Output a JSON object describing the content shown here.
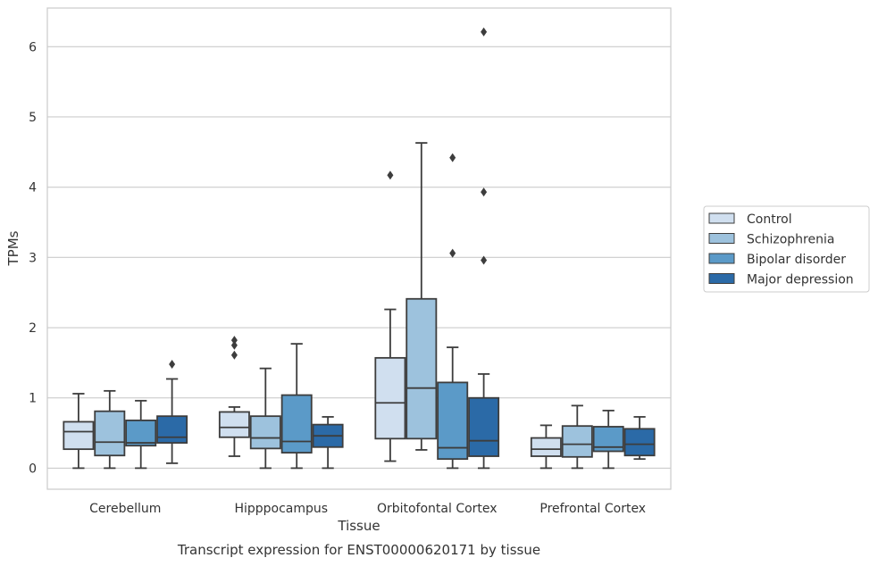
{
  "chart_data": {
    "type": "box",
    "title": "",
    "caption": "Transcript expression for ENST00000620171 by tissue",
    "xlabel": "Tissue",
    "ylabel": "TPMs",
    "ylim": [
      -0.3,
      6.55
    ],
    "yticks": [
      0,
      1,
      2,
      3,
      4,
      5,
      6
    ],
    "ytick_labels": [
      "0",
      "1",
      "2",
      "3",
      "4",
      "5",
      "6"
    ],
    "grid": "horizontal",
    "legend_position": "right",
    "categories": [
      "Cerebellum",
      "Hipppocampus",
      "Orbitofontal Cortex",
      "Prefrontal Cortex"
    ],
    "series": [
      {
        "name": "Control",
        "color": "#d0dfef",
        "boxes": [
          {
            "min": 0.0,
            "q1": 0.27,
            "median": 0.52,
            "q3": 0.66,
            "max": 1.06,
            "outliers": []
          },
          {
            "min": 0.17,
            "q1": 0.44,
            "median": 0.58,
            "q3": 0.8,
            "max": 0.87,
            "outliers": [
              1.61,
              1.75,
              1.82
            ]
          },
          {
            "min": 0.1,
            "q1": 0.42,
            "median": 0.93,
            "q3": 1.57,
            "max": 2.26,
            "outliers": [
              4.17
            ]
          },
          {
            "min": 0.0,
            "q1": 0.17,
            "median": 0.27,
            "q3": 0.43,
            "max": 0.61,
            "outliers": []
          }
        ]
      },
      {
        "name": "Schizophrenia",
        "color": "#9dc2dd",
        "boxes": [
          {
            "min": 0.0,
            "q1": 0.18,
            "median": 0.37,
            "q3": 0.81,
            "max": 1.1,
            "outliers": []
          },
          {
            "min": 0.0,
            "q1": 0.28,
            "median": 0.43,
            "q3": 0.74,
            "max": 1.42,
            "outliers": []
          },
          {
            "min": 0.26,
            "q1": 0.42,
            "median": 1.14,
            "q3": 2.41,
            "max": 4.63,
            "outliers": []
          },
          {
            "min": 0.0,
            "q1": 0.16,
            "median": 0.34,
            "q3": 0.6,
            "max": 0.89,
            "outliers": []
          }
        ]
      },
      {
        "name": "Bipolar disorder",
        "color": "#5b9ac8",
        "boxes": [
          {
            "min": 0.0,
            "q1": 0.32,
            "median": 0.36,
            "q3": 0.68,
            "max": 0.96,
            "outliers": []
          },
          {
            "min": 0.0,
            "q1": 0.22,
            "median": 0.38,
            "q3": 1.04,
            "max": 1.77,
            "outliers": []
          },
          {
            "min": 0.0,
            "q1": 0.13,
            "median": 0.29,
            "q3": 1.22,
            "max": 1.72,
            "outliers": [
              3.06,
              4.42
            ]
          },
          {
            "min": 0.0,
            "q1": 0.24,
            "median": 0.3,
            "q3": 0.59,
            "max": 0.82,
            "outliers": []
          }
        ]
      },
      {
        "name": "Major depression",
        "color": "#2b6aa7",
        "boxes": [
          {
            "min": 0.07,
            "q1": 0.36,
            "median": 0.44,
            "q3": 0.74,
            "max": 1.27,
            "outliers": [
              1.48
            ]
          },
          {
            "min": 0.0,
            "q1": 0.3,
            "median": 0.46,
            "q3": 0.62,
            "max": 0.73,
            "outliers": []
          },
          {
            "min": 0.0,
            "q1": 0.17,
            "median": 0.39,
            "q3": 1.0,
            "max": 1.34,
            "outliers": [
              2.96,
              3.93,
              6.21
            ]
          },
          {
            "min": 0.13,
            "q1": 0.18,
            "median": 0.34,
            "q3": 0.56,
            "max": 0.73,
            "outliers": []
          }
        ]
      }
    ]
  }
}
